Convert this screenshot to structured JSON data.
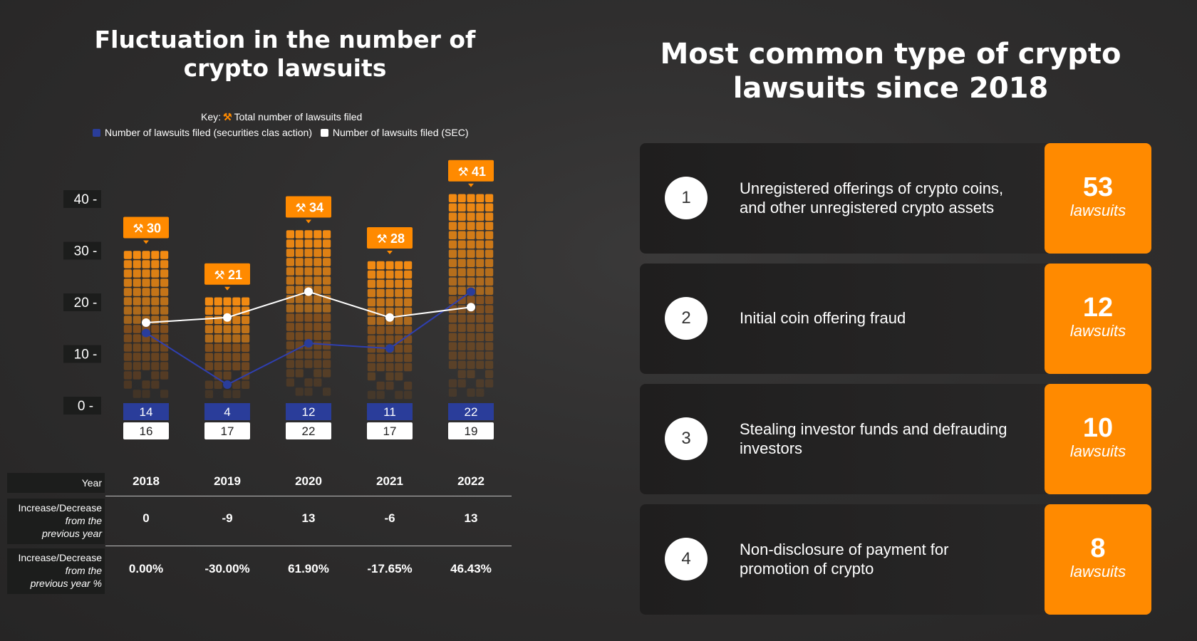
{
  "left": {
    "title_line1": "Fluctuation in the number of",
    "title_line2": "crypto lawsuits",
    "key_prefix": "Key:",
    "key_total": "Total number of lawsuits filed",
    "key_securities": "Number of lawsuits filed (securities clas action)",
    "key_sec": "Number of lawsuits filed (SEC)"
  },
  "colors": {
    "orange": "#ff8a00",
    "blue": "#2a3d9a",
    "white": "#ffffff",
    "dark": "#1c1d1c"
  },
  "chart_data": {
    "type": "bar",
    "categories": [
      "2018",
      "2019",
      "2020",
      "2021",
      "2022"
    ],
    "series": [
      {
        "name": "Total number of lawsuits filed",
        "values": [
          30,
          21,
          34,
          28,
          41
        ]
      },
      {
        "name": "Number of lawsuits filed (securities clas action)",
        "values": [
          14,
          4,
          12,
          11,
          22
        ]
      },
      {
        "name": "Number of lawsuits filed (SEC)",
        "values": [
          16,
          17,
          22,
          17,
          19
        ]
      }
    ],
    "ylim": [
      0,
      40
    ],
    "yticks": [
      0,
      10,
      20,
      30,
      40
    ],
    "ytick_labels": [
      "0 -",
      "10 -",
      "20 -",
      "30 -",
      "40 -"
    ]
  },
  "table": {
    "year_label": "Year",
    "change_label_line1": "Increase/Decrease",
    "change_label_line2": "from the",
    "change_label_line3": "previous year",
    "pct_label_line1": "Increase/Decrease",
    "pct_label_line2": "from the",
    "pct_label_line3": "previous year %",
    "years": [
      "2018",
      "2019",
      "2020",
      "2021",
      "2022"
    ],
    "change": [
      "0",
      "-9",
      "13",
      "-6",
      "13"
    ],
    "change_pct": [
      "0.00%",
      "-30.00%",
      "61.90%",
      "-17.65%",
      "46.43%"
    ]
  },
  "right": {
    "title_line1": "Most common type of crypto",
    "title_line2": "lawsuits since 2018",
    "items": [
      {
        "rank": "1",
        "line1": "Unregistered offerings of crypto coins,",
        "line2": "and other unregistered crypto assets",
        "count": "53",
        "unit": "lawsuits"
      },
      {
        "rank": "2",
        "line1": "Initial coin offering fraud",
        "line2": "",
        "count": "12",
        "unit": "lawsuits"
      },
      {
        "rank": "3",
        "line1": "Stealing investor funds and defrauding",
        "line2": "investors",
        "count": "10",
        "unit": "lawsuits"
      },
      {
        "rank": "4",
        "line1": "Non-disclosure of payment for",
        "line2": "promotion of crypto",
        "count": "8",
        "unit": "lawsuits"
      }
    ]
  }
}
